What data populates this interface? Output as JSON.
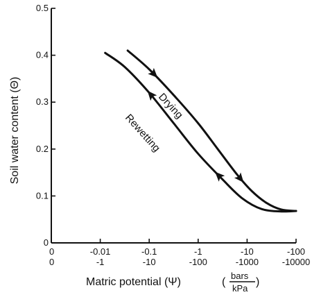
{
  "chart_data": {
    "type": "line",
    "xlabel": "Matric potential (Ψ)",
    "xunits": {
      "open": "(",
      "top": "bars",
      "bottom": "kPa",
      "close": ")"
    },
    "ylabel": "Soil water content (Θ)",
    "ylim": [
      0,
      0.5
    ],
    "yticks": [
      "0",
      "0.1",
      "0.2",
      "0.3",
      "0.4",
      "0.5"
    ],
    "x_scale": "log (negative potential)",
    "xticks_bars": [
      "0",
      "-0.01",
      "-0.1",
      "-1",
      "-10",
      "-100"
    ],
    "xticks_kpa": [
      "0",
      "-1",
      "-10",
      "-100",
      "-1000",
      "-10000"
    ],
    "tick_positions": [
      0,
      1,
      2,
      3,
      4,
      5
    ],
    "xrange": [
      0,
      5
    ],
    "grid": false,
    "series": [
      {
        "name": "Drying",
        "direction": "forward",
        "x": [
          1.56,
          2.0,
          2.5,
          3.0,
          3.4,
          3.8,
          4.1,
          4.4,
          4.7,
          5.0
        ],
        "y": [
          0.41,
          0.37,
          0.315,
          0.255,
          0.2,
          0.145,
          0.11,
          0.085,
          0.071,
          0.068
        ],
        "arrows_at": [
          0.15,
          0.72
        ]
      },
      {
        "name": "Rewetting",
        "direction": "reverse",
        "x": [
          5.0,
          4.7,
          4.3,
          3.9,
          3.5,
          3.0,
          2.5,
          2.0,
          1.5,
          1.1
        ],
        "y": [
          0.068,
          0.067,
          0.072,
          0.095,
          0.135,
          0.19,
          0.255,
          0.32,
          0.375,
          0.405
        ],
        "arrows_at": [
          0.35,
          0.76
        ]
      }
    ]
  }
}
